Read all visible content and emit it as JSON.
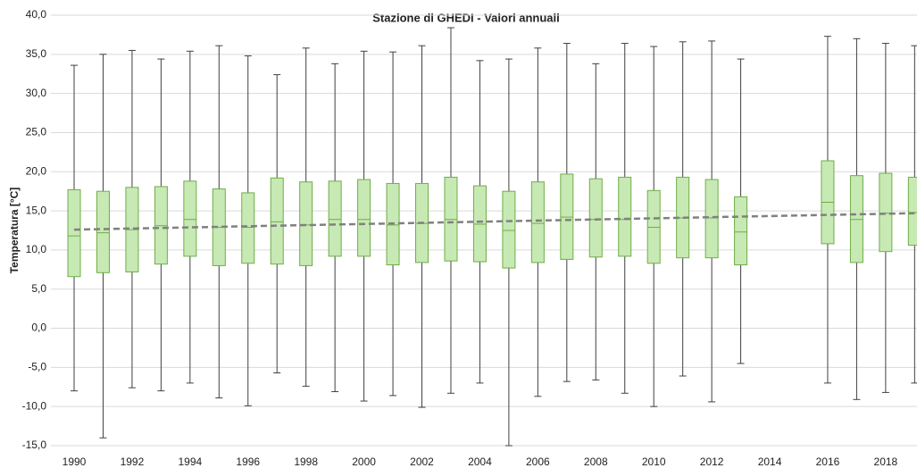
{
  "chart_data": {
    "type": "box",
    "title": "Stazione di GHEDI - Valori annuali",
    "y_label": "Temperatura [°C]",
    "categories": [
      "1990",
      null,
      "1992",
      null,
      "1994",
      null,
      "1996",
      null,
      "1998",
      null,
      "2000",
      null,
      "2002",
      null,
      "2004",
      null,
      "2006",
      null,
      "2008",
      null,
      "2010",
      null,
      "2012",
      null,
      "2014",
      null,
      "2016",
      null,
      "2018",
      null
    ],
    "max": [
      33.6,
      35.0,
      35.5,
      34.4,
      35.4,
      36.1,
      34.8,
      32.4,
      35.8,
      33.8,
      35.4,
      35.3,
      36.1,
      38.4,
      34.2,
      34.4,
      35.8,
      36.4,
      33.8,
      36.4,
      36.0,
      36.6,
      36.7,
      34.4,
      null,
      null,
      37.3,
      37.0,
      36.4,
      36.1
    ],
    "q3": [
      17.7,
      17.5,
      18.0,
      18.1,
      18.8,
      17.8,
      17.3,
      19.2,
      18.7,
      18.8,
      19.0,
      18.5,
      18.5,
      19.3,
      18.2,
      17.5,
      18.7,
      19.7,
      19.1,
      19.3,
      17.6,
      19.3,
      19.0,
      16.8,
      null,
      null,
      21.4,
      19.5,
      19.8,
      19.3
    ],
    "median": [
      11.8,
      12.2,
      12.6,
      13.1,
      13.9,
      12.9,
      12.9,
      13.6,
      13.2,
      13.9,
      13.9,
      13.2,
      13.4,
      13.9,
      13.3,
      12.5,
      13.4,
      14.2,
      13.9,
      13.9,
      12.9,
      14.1,
      14.1,
      12.3,
      null,
      null,
      16.1,
      13.9,
      14.7,
      14.8
    ],
    "q1": [
      6.6,
      7.1,
      7.2,
      8.2,
      9.2,
      8.0,
      8.3,
      8.2,
      8.0,
      9.2,
      9.2,
      8.1,
      8.4,
      8.6,
      8.5,
      7.7,
      8.4,
      8.8,
      9.1,
      9.2,
      8.3,
      9.0,
      9.0,
      8.1,
      null,
      null,
      10.8,
      8.4,
      9.8,
      10.6
    ],
    "min": [
      -8.0,
      -14.0,
      -7.6,
      -8.0,
      -7.0,
      -8.9,
      -9.9,
      -5.7,
      -7.4,
      -8.1,
      -9.3,
      -8.6,
      -10.1,
      -8.3,
      -7.0,
      -15.0,
      -8.7,
      -6.8,
      -6.6,
      -8.3,
      -10.0,
      -6.1,
      -9.4,
      -4.5,
      null,
      null,
      -7.0,
      -9.1,
      -8.2,
      -7.0
    ],
    "box_color": "#c7e9b4",
    "box_edge_color": "#70ad47",
    "whisker_color": "#404040",
    "trend": {
      "color": "#808080",
      "values": [
        12.6,
        14.7
      ]
    },
    "ylim": [
      -15,
      40
    ],
    "yticks": [
      {
        "value": -15,
        "label": "-15,0"
      },
      {
        "value": -10,
        "label": "-10,0"
      },
      {
        "value": -5,
        "label": "-5,0"
      },
      {
        "value": 0,
        "label": "0,0"
      },
      {
        "value": 5,
        "label": "5,0"
      },
      {
        "value": 10,
        "label": "10,0"
      },
      {
        "value": 15,
        "label": "15,0"
      },
      {
        "value": 20,
        "label": "20,0"
      },
      {
        "value": 25,
        "label": "25,0"
      },
      {
        "value": 30,
        "label": "30,0"
      },
      {
        "value": 35,
        "label": "35,0"
      },
      {
        "value": 40,
        "label": "40,0"
      }
    ],
    "grid": true
  }
}
